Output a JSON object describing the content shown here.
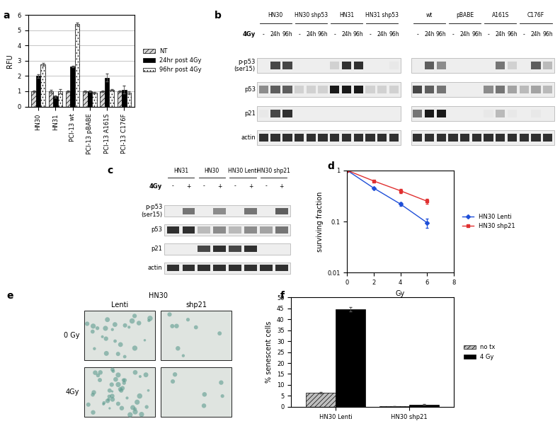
{
  "chart_data": [
    {
      "panel": "a",
      "type": "bar",
      "y_label": "RFU",
      "categories": [
        "HN30",
        "HN31",
        "PCI-13 wt",
        "PCI-13 pBABE",
        "PCI-13 A161S",
        "PCI-13 C176F"
      ],
      "series": [
        {
          "name": "NT",
          "color": "#d9d9d9",
          "values": [
            1,
            1,
            1,
            1,
            1,
            1
          ],
          "error": [
            0.05,
            0.1,
            0.03,
            0.05,
            0.05,
            0.05
          ]
        },
        {
          "name": "24hr post 4Gy",
          "color": "#000000",
          "values": [
            2.0,
            0.65,
            2.6,
            1.0,
            1.9,
            1.1
          ],
          "error": [
            0.1,
            0.05,
            0.05,
            0.05,
            0.25,
            0.25
          ]
        },
        {
          "name": "96hr post 4Gy",
          "color": "#f2f2f2",
          "values": [
            2.75,
            1.0,
            5.4,
            0.9,
            1.1,
            0.9
          ],
          "error": [
            0.1,
            0.15,
            0.08,
            0.05,
            0.05,
            0.1
          ]
        }
      ],
      "ylim": [
        0,
        6
      ],
      "yticks": [
        0,
        1,
        2,
        3,
        4,
        5,
        6
      ],
      "grid": true,
      "legend": "right"
    },
    {
      "panel": "d",
      "type": "line",
      "x_label": "Gy",
      "y_label": "surviving fraction",
      "log": "y",
      "x": [
        0,
        2,
        4,
        6
      ],
      "series": [
        {
          "name": "HN30 Lenti",
          "color": "#1f4fd8",
          "marker": "diamond",
          "values": [
            1,
            0.45,
            0.22,
            0.095
          ],
          "error": [
            0.02,
            0.015,
            0.015,
            0.02
          ]
        },
        {
          "name": "HN30 shp21",
          "color": "#e03030",
          "marker": "square",
          "values": [
            1,
            0.62,
            0.4,
            0.25
          ],
          "error": [
            0.02,
            0.02,
            0.04,
            0.03
          ]
        }
      ],
      "xlim": [
        0,
        8
      ],
      "xticks": [
        0,
        2,
        4,
        6,
        8
      ],
      "ylim": [
        0.01,
        1
      ],
      "yticks": [
        0.01,
        0.1,
        1
      ],
      "grid": false,
      "legend": "right"
    },
    {
      "panel": "f",
      "type": "bar",
      "y_label": "% senescent cells",
      "categories": [
        "HN30 Lenti",
        "HN30 shp21"
      ],
      "series": [
        {
          "name": "no tx",
          "color": "#bfbfbf",
          "values": [
            6.5,
            0.3
          ],
          "error": [
            0.4,
            0.1
          ]
        },
        {
          "name": "4 Gy",
          "color": "#000000",
          "values": [
            44.5,
            1.0
          ],
          "error": [
            1.0,
            0.2
          ]
        }
      ],
      "ylim": [
        0,
        50
      ],
      "yticks": [
        0,
        5,
        10,
        15,
        20,
        25,
        30,
        35,
        40,
        45,
        50
      ],
      "grid": false,
      "legend": "right"
    }
  ],
  "blots": [
    {
      "panel": "b",
      "treatment_label": "4Gy",
      "rows": [
        "p-p53\n(ser15)",
        "p53",
        "p21",
        "actin"
      ],
      "blocks": [
        {
          "groups": [
            {
              "name": "HN30",
              "lanes": [
                "-",
                "24h",
                "96h"
              ]
            },
            {
              "name": "HN30 shp53",
              "lanes": [
                "-",
                "24h",
                "96h"
              ]
            },
            {
              "name": "HN31",
              "lanes": [
                "-",
                "24h",
                "96h"
              ]
            },
            {
              "name": "HN31 shp53",
              "lanes": [
                "-",
                "24h",
                "96h"
              ]
            }
          ],
          "bands": [
            [
              0,
              0.8,
              0.8,
              0,
              0,
              0,
              0.2,
              0.9,
              0.9,
              0,
              0,
              0.1
            ],
            [
              0.5,
              0.7,
              0.7,
              0.2,
              0.2,
              0.2,
              1,
              1,
              1,
              0.2,
              0.2,
              0.2
            ],
            [
              0.1,
              0.8,
              0.9,
              0,
              0,
              0,
              0,
              0,
              0,
              0,
              0,
              0
            ],
            [
              0.9,
              0.9,
              0.9,
              0.9,
              0.9,
              0.9,
              0.9,
              0.9,
              0.9,
              0.9,
              0.9,
              0.9
            ]
          ]
        },
        {
          "groups": [
            {
              "name": "wt",
              "lanes": [
                "-",
                "24h",
                "96h"
              ]
            },
            {
              "name": "pBABE",
              "lanes": [
                "-",
                "24h",
                "96h"
              ]
            },
            {
              "name": "A161S",
              "lanes": [
                "-",
                "24h",
                "96h"
              ]
            },
            {
              "name": "C176F",
              "lanes": [
                "-",
                "24h",
                "96h"
              ]
            }
          ],
          "bands": [
            [
              0,
              0.7,
              0.5,
              0,
              0,
              0,
              0,
              0.6,
              0.2,
              0,
              0.7,
              0.3
            ],
            [
              0.8,
              0.7,
              0.6,
              0,
              0,
              0,
              0.5,
              0.6,
              0.4,
              0.3,
              0.4,
              0.3
            ],
            [
              0.6,
              1,
              1,
              0,
              0,
              0,
              0.1,
              0.3,
              0.1,
              0,
              0.1,
              0
            ],
            [
              0.9,
              0.9,
              0.9,
              0.9,
              0.9,
              0.9,
              0.9,
              0.9,
              0.9,
              0.9,
              0.9,
              0.9
            ]
          ]
        }
      ]
    },
    {
      "panel": "c",
      "treatment_label": "4Gy",
      "rows": [
        "p-p53\n(ser15)",
        "p53",
        "p21",
        "actin"
      ],
      "blocks": [
        {
          "groups": [
            {
              "name": "HN31",
              "lanes": [
                "-",
                "+"
              ]
            },
            {
              "name": "HN30",
              "lanes": [
                "-",
                "+"
              ]
            },
            {
              "name": "HN30 Lenti",
              "lanes": [
                "-",
                "+"
              ]
            },
            {
              "name": "HN30 shp21",
              "lanes": [
                "-",
                "+"
              ]
            }
          ],
          "bands": [
            [
              0,
              0.6,
              0,
              0.5,
              0,
              0.6,
              0,
              0.7
            ],
            [
              0.9,
              0.9,
              0.3,
              0.5,
              0.3,
              0.5,
              0.4,
              0.6
            ],
            [
              0,
              0,
              0.8,
              0.9,
              0.8,
              0.9,
              0,
              0
            ],
            [
              0.9,
              0.9,
              0.9,
              0.9,
              0.9,
              0.9,
              0.9,
              0.9
            ]
          ]
        }
      ]
    }
  ],
  "micrographs": {
    "panel": "e",
    "title": "HN30",
    "columns": [
      "Lenti",
      "shp21"
    ],
    "rows": [
      "0 Gy",
      "4Gy"
    ]
  }
}
